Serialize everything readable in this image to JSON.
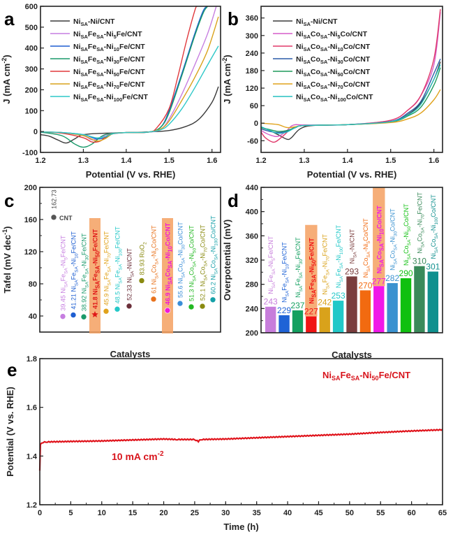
{
  "chart_data": [
    {
      "panel": "a",
      "type": "line",
      "xlabel": "Potential (V vs. RHE)",
      "ylabel": "J (mA cm^-2)",
      "xlim": [
        1.2,
        1.62
      ],
      "ylim": [
        -100,
        600
      ],
      "xticks": [
        "1.2",
        "1.3",
        "1.4",
        "1.5",
        "1.6"
      ],
      "yticks": [
        "-100",
        "0",
        "100",
        "200",
        "300",
        "400",
        "500",
        "600"
      ],
      "legend_position": "top-left",
      "series": [
        {
          "name": "NiSA-Ni/CNT",
          "color": "#3a3a3a",
          "x": [
            1.2,
            1.22,
            1.24,
            1.26,
            1.28,
            1.3,
            1.35,
            1.4,
            1.45,
            1.5,
            1.54,
            1.57,
            1.6,
            1.615
          ],
          "y": [
            -15,
            -22,
            -40,
            -55,
            -35,
            -15,
            -8,
            -5,
            -2,
            5,
            25,
            60,
            140,
            215
          ]
        },
        {
          "name": "NiSAFeSA-Ni5Fe/CNT",
          "color": "#c67ee0",
          "x": [
            1.2,
            1.25,
            1.3,
            1.32,
            1.34,
            1.36,
            1.4,
            1.45,
            1.48,
            1.5,
            1.53,
            1.56,
            1.59,
            1.61
          ],
          "y": [
            -2,
            -5,
            -20,
            -40,
            -30,
            -10,
            -5,
            -3,
            10,
            60,
            180,
            320,
            470,
            600
          ]
        },
        {
          "name": "NiSAFeSA-Ni10Fe/CNT",
          "color": "#1f5fd1",
          "x": [
            1.2,
            1.25,
            1.3,
            1.33,
            1.35,
            1.37,
            1.4,
            1.45,
            1.48,
            1.5,
            1.53,
            1.56,
            1.58,
            1.59
          ],
          "y": [
            -2,
            -5,
            -15,
            -35,
            -30,
            -10,
            -5,
            -3,
            20,
            100,
            280,
            470,
            580,
            600
          ]
        },
        {
          "name": "NiSAFeSA-Ni30Fe/CNT",
          "color": "#1a9a6a",
          "x": [
            1.2,
            1.25,
            1.28,
            1.3,
            1.32,
            1.35,
            1.4,
            1.45,
            1.48,
            1.5,
            1.53,
            1.56,
            1.58,
            1.59
          ],
          "y": [
            -3,
            -20,
            -60,
            -75,
            -60,
            -15,
            -5,
            -3,
            20,
            90,
            270,
            460,
            570,
            600
          ]
        },
        {
          "name": "NiSAFeSA-Ni50Fe/CNT",
          "color": "#e0383c",
          "x": [
            1.2,
            1.25,
            1.3,
            1.32,
            1.34,
            1.36,
            1.4,
            1.45,
            1.47,
            1.5,
            1.52,
            1.54,
            1.56,
            1.565
          ],
          "y": [
            -2,
            -8,
            -30,
            -50,
            -45,
            -15,
            -5,
            -3,
            15,
            110,
            260,
            430,
            580,
            600
          ]
        },
        {
          "name": "NiSAFeSA-Ni70Fe/CNT",
          "color": "#d9a21b",
          "x": [
            1.2,
            1.25,
            1.3,
            1.33,
            1.35,
            1.37,
            1.4,
            1.45,
            1.48,
            1.5,
            1.53,
            1.56,
            1.59,
            1.615
          ],
          "y": [
            -2,
            -5,
            -20,
            -45,
            -35,
            -10,
            -5,
            -3,
            12,
            50,
            150,
            260,
            390,
            550
          ]
        },
        {
          "name": "NiSAFeSA-Ni100Fe/CNT",
          "color": "#2ec8c8",
          "x": [
            1.2,
            1.25,
            1.3,
            1.33,
            1.35,
            1.37,
            1.4,
            1.45,
            1.48,
            1.5,
            1.53,
            1.56,
            1.59,
            1.615
          ],
          "y": [
            -2,
            -5,
            -15,
            -30,
            -25,
            -10,
            -5,
            -3,
            8,
            35,
            110,
            210,
            320,
            410
          ]
        }
      ]
    },
    {
      "panel": "b",
      "type": "line",
      "xlabel": "Potential (V vs. RHE)",
      "ylabel": "J (mA cm^-2)",
      "xlim": [
        1.2,
        1.62
      ],
      "ylim": [
        -100,
        400
      ],
      "xticks": [
        "1.2",
        "1.3",
        "1.4",
        "1.5",
        "1.6"
      ],
      "yticks": [
        "-60",
        "0",
        "60",
        "120",
        "180",
        "240",
        "300",
        "360"
      ],
      "legend_position": "top-left",
      "series": [
        {
          "name": "NiSA-Ni/CNT",
          "color": "#3a3a3a",
          "x": [
            1.2,
            1.22,
            1.24,
            1.26,
            1.27,
            1.29,
            1.32,
            1.4,
            1.5,
            1.54,
            1.57,
            1.6,
            1.615
          ],
          "y": [
            -15,
            -25,
            -40,
            -55,
            -50,
            -20,
            -8,
            -5,
            5,
            30,
            70,
            150,
            210
          ]
        },
        {
          "name": "NiSACoSA-Ni5Co/CNT",
          "color": "#d65cc8",
          "x": [
            1.2,
            1.22,
            1.24,
            1.26,
            1.27,
            1.28,
            1.3,
            1.4,
            1.5,
            1.54,
            1.57,
            1.6,
            1.615
          ],
          "y": [
            -25,
            -40,
            -45,
            -25,
            -10,
            -5,
            -6,
            -5,
            10,
            45,
            95,
            200,
            380
          ]
        },
        {
          "name": "NiSACoSA-Ni10Co/CNT",
          "color": "#e0386a",
          "x": [
            1.2,
            1.21,
            1.23,
            1.25,
            1.27,
            1.3,
            1.4,
            1.5,
            1.54,
            1.57,
            1.6,
            1.615
          ],
          "y": [
            -30,
            -50,
            -65,
            -45,
            -20,
            -8,
            -5,
            10,
            45,
            95,
            220,
            390
          ]
        },
        {
          "name": "NiSACoSA-Ni30Co/CNT",
          "color": "#2a5aa8",
          "x": [
            1.2,
            1.22,
            1.24,
            1.26,
            1.28,
            1.3,
            1.4,
            1.5,
            1.54,
            1.57,
            1.6,
            1.615
          ],
          "y": [
            -20,
            -28,
            -32,
            -28,
            -15,
            -8,
            -5,
            6,
            35,
            75,
            170,
            220
          ]
        },
        {
          "name": "NiSACoSA-Ni50Co/CNT",
          "color": "#1f9a5a",
          "x": [
            1.2,
            1.22,
            1.24,
            1.26,
            1.28,
            1.3,
            1.4,
            1.5,
            1.54,
            1.57,
            1.6,
            1.615
          ],
          "y": [
            -15,
            -22,
            -28,
            -25,
            -15,
            -8,
            -5,
            4,
            25,
            55,
            130,
            190
          ]
        },
        {
          "name": "NiSACoSA-Ni70Co/CNT",
          "color": "#e0a21b",
          "x": [
            1.2,
            1.22,
            1.24,
            1.26,
            1.28,
            1.3,
            1.4,
            1.5,
            1.54,
            1.57,
            1.6,
            1.615
          ],
          "y": [
            0,
            -2,
            -5,
            -15,
            -12,
            -8,
            -5,
            2,
            15,
            35,
            80,
            115
          ]
        },
        {
          "name": "NiSACoSA-Ni100Co/CNT",
          "color": "#25c0c0",
          "x": [
            1.2,
            1.22,
            1.24,
            1.26,
            1.28,
            1.3,
            1.4,
            1.5,
            1.54,
            1.57,
            1.6,
            1.615
          ],
          "y": [
            -12,
            -25,
            -35,
            -30,
            -15,
            -8,
            -5,
            5,
            28,
            65,
            150,
            200
          ]
        }
      ]
    },
    {
      "panel": "c",
      "type": "scatter",
      "xlabel": "Catalysts",
      "ylabel": "Tafel (mV dec^-1)",
      "ylim": [
        20,
        200
      ],
      "yticks": [
        "40",
        "80",
        "120",
        "160",
        "200"
      ],
      "points": [
        {
          "value": 162.73,
          "label": "CNT",
          "value_text": "162.73",
          "color": "#555555",
          "marker": "circle",
          "highlight": false
        },
        {
          "value": 39.45,
          "label": "NiSAFeSA-Ni5Fe/CNT",
          "value_text": "39.45",
          "color": "#c67ee0",
          "marker": "circle",
          "highlight": false
        },
        {
          "value": 41.21,
          "label": "NiSAFeSA-Ni10Fe/CNT",
          "value_text": "41.21",
          "color": "#1f5fd1",
          "marker": "circle",
          "highlight": false
        },
        {
          "value": 38.92,
          "label": "NiSAFeSA-Ni30Fe/CNT",
          "value_text": "38.92",
          "color": "#1a9a6a",
          "marker": "circle",
          "highlight": false
        },
        {
          "value": 41.8,
          "label": "NiSAFeSA-Ni50Fe/CNT",
          "value_text": "41.8",
          "color": "#e01818",
          "marker": "star",
          "highlight": true
        },
        {
          "value": 45.9,
          "label": "NiSAFeSA-Ni70Fe/CNT",
          "value_text": "45.9",
          "color": "#e0a21b",
          "marker": "circle",
          "highlight": false
        },
        {
          "value": 48.5,
          "label": "NiSAFeSA-Ni100Fe/CNT",
          "value_text": "48.5",
          "color": "#25c8c8",
          "marker": "circle",
          "highlight": false
        },
        {
          "value": 52.33,
          "label": "NiSA-Ni/CNT",
          "value_text": "52.33",
          "color": "#6b2f3a",
          "marker": "circle",
          "highlight": false
        },
        {
          "value": 83.93,
          "label": "RuO2",
          "value_text": "83.93",
          "color": "#8a8a10",
          "marker": "circle",
          "highlight": false
        },
        {
          "value": 61,
          "label": "NiSACoSA-Ni5Co/CNT",
          "value_text": "61",
          "color": "#e8721c",
          "marker": "circle",
          "highlight": false
        },
        {
          "value": 46.9,
          "label": "NiSACoSA-Ni10Co/CNT",
          "value_text": "46.9",
          "color": "#f018d8",
          "marker": "circle",
          "highlight": true
        },
        {
          "value": 55.6,
          "label": "NiSACoSA-Ni30Co/CNT",
          "value_text": "55.6",
          "color": "#3a8ed8",
          "marker": "circle",
          "highlight": false
        },
        {
          "value": 51.3,
          "label": "NiSACoSA-Ni50Co/CNT",
          "value_text": "51.3",
          "color": "#22b822",
          "marker": "circle",
          "highlight": false
        },
        {
          "value": 52.1,
          "label": "NiSACoSA-Ni70Co/CNT",
          "value_text": "52.1",
          "color": "#8a8a10",
          "marker": "circle",
          "highlight": false
        },
        {
          "value": 60.2,
          "label": "NiSACoSA-Ni100Co/CNT",
          "value_text": "60.2",
          "color": "#15a0a8",
          "marker": "circle",
          "highlight": false
        }
      ]
    },
    {
      "panel": "d",
      "type": "bar",
      "xlabel": "Catalysts",
      "ylabel": "Overpotential (mV)",
      "ylim": [
        200,
        440
      ],
      "yticks": [
        "200",
        "240",
        "280",
        "320",
        "360",
        "400",
        "440"
      ],
      "categories": [
        "NiSAFeSA-Ni5Fe/CNT",
        "NiSAFeSA-Ni10Fe/CNT",
        "NiSAFeSA-Ni30Fe/CNT",
        "NiSAFeSA-Ni50Fe/CNT",
        "NiSAFeSA-Ni70Fe/CNT",
        "NiSAFeSA-Ni100Fe/CNT",
        "NiSA-Ni/CNT",
        "NiSACoSA-Ni5Co/CNT",
        "NiSACoSA-Ni10Co/CNT",
        "NiSACoSA-Ni30Co/CNT",
        "NiSACoSA-Ni50Co/CNT",
        "NiSACoSA-Ni70Fe/CNT",
        "NiSACoSA-Ni100Co/CNT"
      ],
      "values": [
        243,
        229,
        237,
        227,
        242,
        253,
        293,
        270,
        277,
        282,
        290,
        310,
        301
      ],
      "value_labels": [
        "243",
        "229",
        "237",
        "227",
        "242",
        "253",
        "293",
        "270",
        "277",
        "282",
        "290",
        "310",
        "301"
      ],
      "colors": [
        "#c77ddb",
        "#1f63d6",
        "#14a060",
        "#f01414",
        "#d9a21b",
        "#22c8c8",
        "#7a3d3d",
        "#f26a10",
        "#f018e8",
        "#3a92d0",
        "#10c010",
        "#3a8a5a",
        "#10908e"
      ],
      "highlight": [
        false,
        false,
        false,
        true,
        false,
        false,
        false,
        false,
        true,
        false,
        false,
        false,
        false
      ]
    },
    {
      "panel": "e",
      "type": "line",
      "xlabel": "Time (h)",
      "ylabel": "Potential (V vs. RHE)",
      "xlim": [
        0,
        65
      ],
      "ylim": [
        1.2,
        1.8
      ],
      "xticks": [
        "0",
        "5",
        "10",
        "15",
        "20",
        "25",
        "30",
        "35",
        "40",
        "45",
        "50",
        "55",
        "60",
        "65"
      ],
      "yticks": [
        "1.2",
        "1.4",
        "1.6",
        "1.8"
      ],
      "annotations": [
        "10 mA cm^-2",
        "NiSAFeSA-Ni50Fe/CNT"
      ],
      "series": [
        {
          "name": "NiSAFeSA-Ni50Fe/CNT",
          "color": "#e0141c",
          "x": [
            0,
            0.1,
            0.3,
            1,
            5,
            10,
            15,
            20,
            22,
            25,
            25.6,
            25.8,
            26,
            30,
            35,
            40,
            45,
            50,
            55,
            60,
            65
          ],
          "y": [
            1.34,
            1.45,
            1.455,
            1.458,
            1.46,
            1.462,
            1.466,
            1.47,
            1.468,
            1.468,
            1.46,
            1.468,
            1.468,
            1.47,
            1.475,
            1.48,
            1.485,
            1.49,
            1.497,
            1.503,
            1.508
          ]
        }
      ]
    }
  ],
  "panels": {
    "a": {
      "letter": "a"
    },
    "b": {
      "letter": "b"
    },
    "c": {
      "letter": "c"
    },
    "d": {
      "letter": "d"
    },
    "e": {
      "letter": "e"
    }
  }
}
